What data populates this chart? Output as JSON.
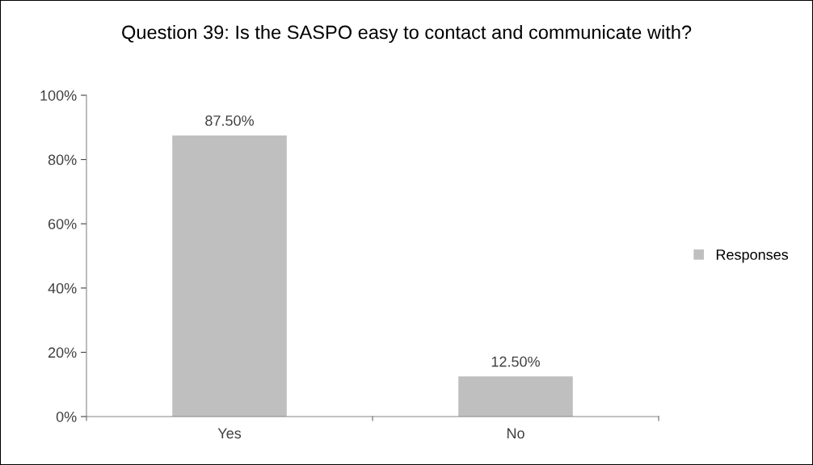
{
  "chart_data": {
    "type": "bar",
    "title": "Question 39: Is the SASPO easy to contact and communicate with?",
    "categories": [
      "Yes",
      "No"
    ],
    "series": [
      {
        "name": "Responses",
        "color": "#bfbfbf",
        "values": [
          87.5,
          12.5
        ],
        "value_labels": [
          "87.50%",
          "12.50%"
        ]
      }
    ],
    "ylim": [
      0,
      100
    ],
    "yticks": [
      {
        "value": 0,
        "label": "0%"
      },
      {
        "value": 20,
        "label": "20%"
      },
      {
        "value": 40,
        "label": "40%"
      },
      {
        "value": 60,
        "label": "60%"
      },
      {
        "value": 80,
        "label": "80%"
      },
      {
        "value": 100,
        "label": "100%"
      }
    ],
    "grid": false,
    "legend": "right"
  }
}
